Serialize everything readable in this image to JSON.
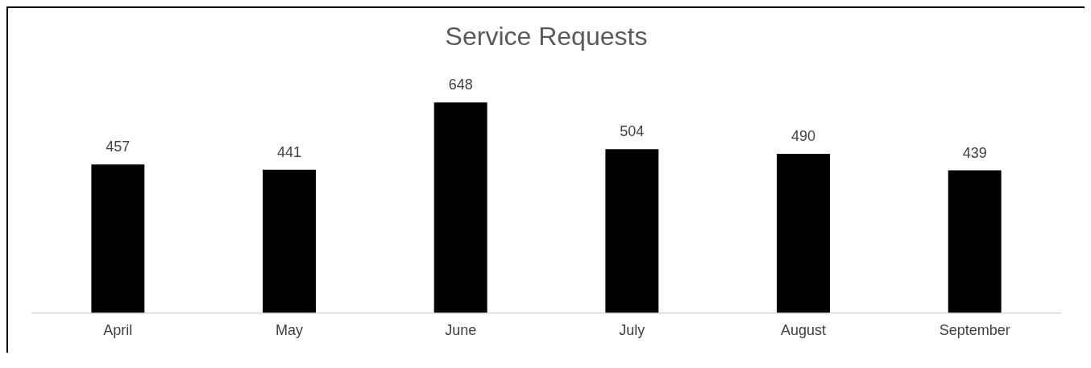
{
  "chart_data": {
    "type": "bar",
    "title": "Service Requests",
    "categories": [
      "April",
      "May",
      "June",
      "July",
      "August",
      "September"
    ],
    "values": [
      457,
      441,
      648,
      504,
      490,
      439
    ],
    "color": "#000000",
    "data_labels": true,
    "grid": false,
    "legend": false
  }
}
